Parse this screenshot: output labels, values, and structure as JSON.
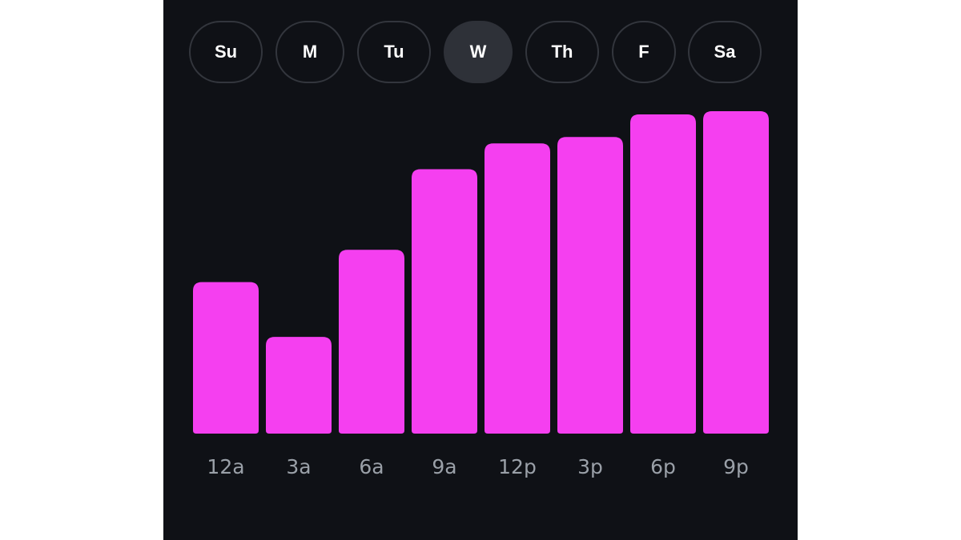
{
  "day_selector": {
    "days": [
      {
        "label": "Su",
        "selected": false
      },
      {
        "label": "M",
        "selected": false
      },
      {
        "label": "Tu",
        "selected": false
      },
      {
        "label": "W",
        "selected": true
      },
      {
        "label": "Th",
        "selected": false
      },
      {
        "label": "F",
        "selected": false
      },
      {
        "label": "Sa",
        "selected": false
      }
    ]
  },
  "colors": {
    "background": "#0f1116",
    "bar": "#f53ff0",
    "pill_border": "#33363d",
    "pill_selected": "#2e3138",
    "tick_label": "#9aa0a8"
  },
  "chart_data": {
    "type": "bar",
    "categories": [
      "12a",
      "3a",
      "6a",
      "9a",
      "12p",
      "3p",
      "6p",
      "9p"
    ],
    "values": [
      47,
      30,
      57,
      82,
      90,
      92,
      99,
      100
    ],
    "ylim": [
      0,
      100
    ],
    "grid": false
  }
}
